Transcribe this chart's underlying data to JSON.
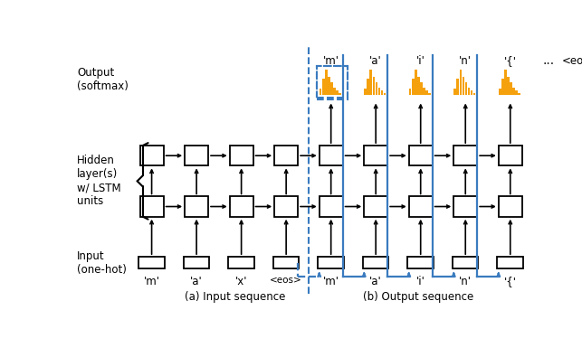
{
  "fig_width": 6.43,
  "fig_height": 3.85,
  "dpi": 100,
  "bg_color": "#ffffff",
  "box_color": "#000000",
  "blue_color": "#3a7bbf",
  "orange_color": "#f5a10e",
  "input_labels": [
    "'m'",
    "'a'",
    "'x'",
    "<eos>",
    "'m'",
    "'a'",
    "'i'",
    "'n'",
    "'{'"
  ],
  "out_labels_above": [
    "'m'",
    "'a'",
    "'i'",
    "'n'",
    "'{'",
    "...",
    "<eos>"
  ],
  "caption_left": "(a) Input sequence",
  "caption_right": "(b) Output sequence"
}
